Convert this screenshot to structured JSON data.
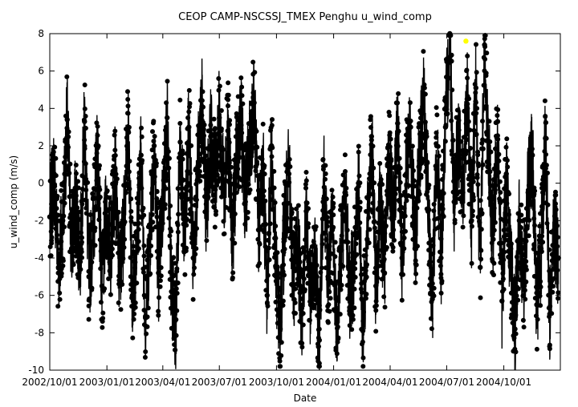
{
  "chart_data": {
    "type": "scatter",
    "title": "CEOP CAMP-NSCSSJ_TMEX Penghu  u_wind_comp",
    "xlabel": "Date",
    "ylabel": "u_wind_comp (m/s)",
    "x_range": [
      "2002-10-01",
      "2004-12-31"
    ],
    "ylim": [
      -10,
      8
    ],
    "y_ticks": [
      -10,
      -8,
      -6,
      -4,
      -2,
      0,
      2,
      4,
      6,
      8
    ],
    "x_ticks": [
      {
        "date": "2002-10-01",
        "label": "2002/10/01"
      },
      {
        "date": "2003-01-01",
        "label": "2003/01/01"
      },
      {
        "date": "2003-04-01",
        "label": "2003/04/01"
      },
      {
        "date": "2003-07-01",
        "label": "2003/07/01"
      },
      {
        "date": "2003-10-01",
        "label": "2003/10/01"
      },
      {
        "date": "2004-01-01",
        "label": "2004/01/01"
      },
      {
        "date": "2004-04-01",
        "label": "2004/04/01"
      },
      {
        "date": "2004-07-01",
        "label": "2004/07/01"
      },
      {
        "date": "2004-10-01",
        "label": "2004/10/01"
      }
    ],
    "grid": false,
    "legend": "none",
    "series": [
      {
        "color": "#000000",
        "marker": "filled-circle",
        "connected": true,
        "points": [
          {
            "x": "2002-10-01",
            "y": -1.8
          },
          {
            "x": "2002-10-08",
            "y": 0.5
          },
          {
            "x": "2002-10-15",
            "y": -4.5
          },
          {
            "x": "2002-10-22",
            "y": -2.0
          },
          {
            "x": "2002-10-29",
            "y": 3.4
          },
          {
            "x": "2002-11-05",
            "y": -3.5
          },
          {
            "x": "2002-11-12",
            "y": -1.0
          },
          {
            "x": "2002-11-19",
            "y": -4.2
          },
          {
            "x": "2002-11-26",
            "y": 3.3
          },
          {
            "x": "2002-12-03",
            "y": -5.0
          },
          {
            "x": "2002-12-10",
            "y": -2.5
          },
          {
            "x": "2002-12-17",
            "y": 1.9
          },
          {
            "x": "2002-12-24",
            "y": -5.5
          },
          {
            "x": "2002-12-31",
            "y": -1.5
          },
          {
            "x": "2003-01-07",
            "y": -3.8
          },
          {
            "x": "2003-01-14",
            "y": 0.8
          },
          {
            "x": "2003-01-21",
            "y": -5.2
          },
          {
            "x": "2003-01-28",
            "y": -2.2
          },
          {
            "x": "2003-02-04",
            "y": 2.8
          },
          {
            "x": "2003-02-11",
            "y": -6.0
          },
          {
            "x": "2003-02-18",
            "y": -3.0
          },
          {
            "x": "2003-02-25",
            "y": 1.5
          },
          {
            "x": "2003-03-04",
            "y": -7.2
          },
          {
            "x": "2003-03-11",
            "y": -2.8
          },
          {
            "x": "2003-03-18",
            "y": 2.0
          },
          {
            "x": "2003-03-25",
            "y": -4.8
          },
          {
            "x": "2003-04-01",
            "y": -1.2
          },
          {
            "x": "2003-04-08",
            "y": 3.5
          },
          {
            "x": "2003-04-15",
            "y": -5.8
          },
          {
            "x": "2003-04-22",
            "y": -7.3
          },
          {
            "x": "2003-04-29",
            "y": 2.2
          },
          {
            "x": "2003-05-06",
            "y": -3.5
          },
          {
            "x": "2003-05-13",
            "y": 3.0
          },
          {
            "x": "2003-05-20",
            "y": -4.0
          },
          {
            "x": "2003-05-27",
            "y": 0.5
          },
          {
            "x": "2003-06-03",
            "y": 4.1
          },
          {
            "x": "2003-06-10",
            "y": -1.5
          },
          {
            "x": "2003-06-17",
            "y": 2.5
          },
          {
            "x": "2003-06-24",
            "y": 0.2
          },
          {
            "x": "2003-07-01",
            "y": 3.5
          },
          {
            "x": "2003-07-08",
            "y": -0.5
          },
          {
            "x": "2003-07-15",
            "y": 2.8
          },
          {
            "x": "2003-07-22",
            "y": -3.0
          },
          {
            "x": "2003-07-29",
            "y": 1.5
          },
          {
            "x": "2003-08-05",
            "y": 3.1
          },
          {
            "x": "2003-08-12",
            "y": -1.0
          },
          {
            "x": "2003-08-19",
            "y": 2.2
          },
          {
            "x": "2003-08-26",
            "y": 4.3
          },
          {
            "x": "2003-09-02",
            "y": -2.5
          },
          {
            "x": "2003-09-09",
            "y": 1.0
          },
          {
            "x": "2003-09-16",
            "y": -6.0
          },
          {
            "x": "2003-09-23",
            "y": 2.0
          },
          {
            "x": "2003-09-30",
            "y": -4.5
          },
          {
            "x": "2003-10-07",
            "y": -7.8
          },
          {
            "x": "2003-10-14",
            "y": -2.0
          },
          {
            "x": "2003-10-21",
            "y": 0.5
          },
          {
            "x": "2003-10-28",
            "y": -5.5
          },
          {
            "x": "2003-11-04",
            "y": -3.0
          },
          {
            "x": "2003-11-11",
            "y": -7.0
          },
          {
            "x": "2003-11-18",
            "y": -1.5
          },
          {
            "x": "2003-11-25",
            "y": -6.5
          },
          {
            "x": "2003-12-02",
            "y": -4.0
          },
          {
            "x": "2003-12-09",
            "y": -8.4
          },
          {
            "x": "2003-12-16",
            "y": 0.9
          },
          {
            "x": "2003-12-23",
            "y": -5.0
          },
          {
            "x": "2003-12-30",
            "y": -2.5
          },
          {
            "x": "2004-01-06",
            "y": -7.5
          },
          {
            "x": "2004-01-13",
            "y": -3.5
          },
          {
            "x": "2004-01-20",
            "y": -0.5
          },
          {
            "x": "2004-01-27",
            "y": -6.0
          },
          {
            "x": "2004-02-03",
            "y": -4.2
          },
          {
            "x": "2004-02-10",
            "y": 0.0
          },
          {
            "x": "2004-02-17",
            "y": -7.9
          },
          {
            "x": "2004-02-24",
            "y": -3.0
          },
          {
            "x": "2004-03-02",
            "y": 2.5
          },
          {
            "x": "2004-03-09",
            "y": -5.5
          },
          {
            "x": "2004-03-16",
            "y": -1.0
          },
          {
            "x": "2004-03-23",
            "y": -4.8
          },
          {
            "x": "2004-03-30",
            "y": 1.5
          },
          {
            "x": "2004-04-06",
            "y": -2.5
          },
          {
            "x": "2004-04-13",
            "y": 3.2
          },
          {
            "x": "2004-04-20",
            "y": -4.0
          },
          {
            "x": "2004-04-27",
            "y": 0.5
          },
          {
            "x": "2004-05-04",
            "y": 3.0
          },
          {
            "x": "2004-05-11",
            "y": -3.5
          },
          {
            "x": "2004-05-18",
            "y": 1.2
          },
          {
            "x": "2004-05-25",
            "y": 4.8
          },
          {
            "x": "2004-06-01",
            "y": -1.5
          },
          {
            "x": "2004-06-08",
            "y": -6.2
          },
          {
            "x": "2004-06-15",
            "y": 2.0
          },
          {
            "x": "2004-06-22",
            "y": -4.0
          },
          {
            "x": "2004-06-29",
            "y": 3.0
          },
          {
            "x": "2004-07-06",
            "y": 8.0
          },
          {
            "x": "2004-07-13",
            "y": -1.0
          },
          {
            "x": "2004-07-20",
            "y": 2.5
          },
          {
            "x": "2004-07-27",
            "y": -0.5
          },
          {
            "x": "2004-08-03",
            "y": 4.5
          },
          {
            "x": "2004-08-10",
            "y": -2.0
          },
          {
            "x": "2004-08-17",
            "y": 5.1
          },
          {
            "x": "2004-08-24",
            "y": -4.5
          },
          {
            "x": "2004-08-31",
            "y": 7.4
          },
          {
            "x": "2004-09-07",
            "y": 1.0
          },
          {
            "x": "2004-09-14",
            "y": -3.0
          },
          {
            "x": "2004-09-21",
            "y": 3.3
          },
          {
            "x": "2004-09-28",
            "y": -6.3
          },
          {
            "x": "2004-10-05",
            "y": 0.5
          },
          {
            "x": "2004-10-12",
            "y": -4.5
          },
          {
            "x": "2004-10-19",
            "y": -7.8
          },
          {
            "x": "2004-10-26",
            "y": -2.0
          },
          {
            "x": "2004-11-02",
            "y": -5.5
          },
          {
            "x": "2004-11-09",
            "y": -0.5
          },
          {
            "x": "2004-11-16",
            "y": 1.5
          },
          {
            "x": "2004-11-23",
            "y": -6.5
          },
          {
            "x": "2004-11-30",
            "y": -3.5
          },
          {
            "x": "2004-12-07",
            "y": 2.4
          },
          {
            "x": "2004-12-14",
            "y": -7.0
          },
          {
            "x": "2004-12-21",
            "y": -2.5
          },
          {
            "x": "2004-12-28",
            "y": -4.0
          }
        ]
      },
      {
        "color": "#ffff00",
        "marker": "filled-circle",
        "connected": false,
        "points": [
          {
            "x": "2004-08-01",
            "y": 7.6
          }
        ]
      }
    ]
  }
}
